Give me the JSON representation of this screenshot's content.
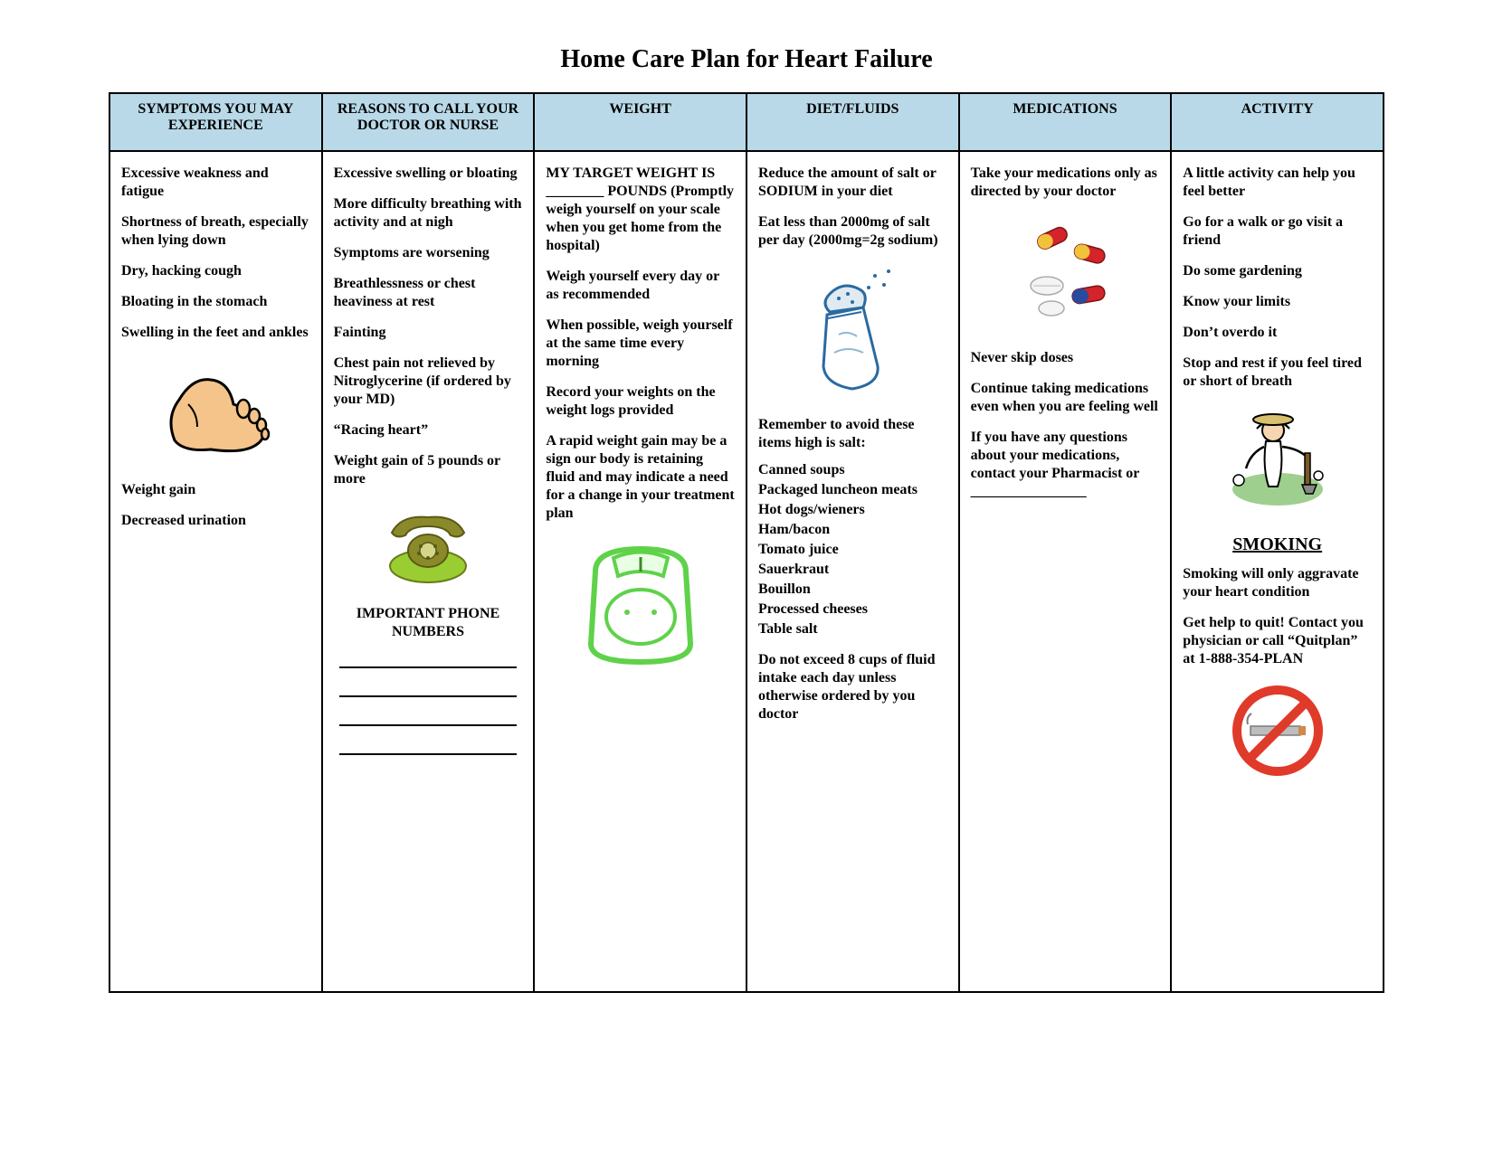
{
  "title": "Home Care Plan for Heart Failure",
  "colors": {
    "header_bg": "#b9d9e8",
    "border": "#000000",
    "page_bg": "#ffffff",
    "foot_outline": "#000000",
    "foot_fill": "#f5c48a",
    "phone_green": "#9acd32",
    "phone_olive": "#8a8a2a",
    "scale_green": "#5fd24a",
    "salt_blue": "#6fb3d6",
    "pill_red": "#d4232a",
    "pill_yellow": "#f2c23a",
    "pill_white": "#f4f4f4",
    "gardener_green": "#9fcf8f",
    "no_sign_red": "#e03a2a",
    "no_sign_gray": "#bdbdbd"
  },
  "columns": [
    {
      "header": "SYMPTOMS YOU MAY EXPERIENCE",
      "items_top": [
        "Excessive weakness and fatigue",
        "Shortness of breath, especially when lying down",
        "Dry, hacking cough",
        "Bloating in the stomach",
        "Swelling in the feet and ankles"
      ],
      "items_bottom": [
        "Weight gain",
        "Decreased urination"
      ]
    },
    {
      "header": "REASONS TO CALL YOUR DOCTOR OR NURSE",
      "items": [
        "Excessive swelling or bloating",
        "More difficulty breathing with activity and at nigh",
        "Symptoms are worsening",
        "Breathlessness or chest heaviness at rest",
        "Fainting",
        "Chest pain not relieved by Nitroglycerine (if ordered by your MD)",
        "“Racing heart”",
        "Weight gain of 5 pounds or more"
      ],
      "phone_label": "IMPORTANT PHONE NUMBERS",
      "phone_line_count": 4
    },
    {
      "header": "WEIGHT",
      "items": [
        "MY TARGET WEIGHT IS ________ POUNDS (Promptly weigh yourself on your scale when you get home from the hospital)",
        "Weigh yourself every day or as recommended",
        "When possible, weigh yourself at the same time every morning",
        "Record your weights on the weight logs provided",
        "A rapid weight gain may be a sign our body is retaining fluid and may indicate a need for a change in your treatment plan"
      ]
    },
    {
      "header": "DIET/FLUIDS",
      "items_top": [
        "Reduce the amount of salt  or SODIUM in your diet",
        "Eat  less than 2000mg of salt per day  (2000mg=2g sodium)"
      ],
      "avoid_intro": "Remember to avoid these items high is salt:",
      "avoid_list": [
        "Canned soups",
        "Packaged luncheon meats",
        "Hot dogs/wieners",
        "Ham/bacon",
        "Tomato juice",
        "Sauerkraut",
        "Bouillon",
        "Processed cheeses",
        "Table salt"
      ],
      "fluid_note": "Do not exceed 8 cups of fluid intake each day unless otherwise ordered by you doctor"
    },
    {
      "header": "MEDICATIONS",
      "items_top": [
        "Take your medications only as directed by your doctor"
      ],
      "items_bottom": [
        "Never skip doses",
        "Continue taking medications even when you are feeling well",
        "If you have any questions about your medications, contact your Pharmacist or ________________"
      ]
    },
    {
      "header": "ACTIVITY",
      "items": [
        "A little activity can help you feel better",
        "Go for a walk or go visit a friend",
        "Do some gardening",
        "Know your limits",
        "Don’t overdo it",
        "Stop and rest if you feel tired or short of breath"
      ],
      "smoking_header": "SMOKING",
      "smoking_items": [
        "Smoking will only aggravate your heart condition",
        "Get help to quit! Contact you physician or call “Quitplan” at  1-888-354-PLAN"
      ]
    }
  ]
}
